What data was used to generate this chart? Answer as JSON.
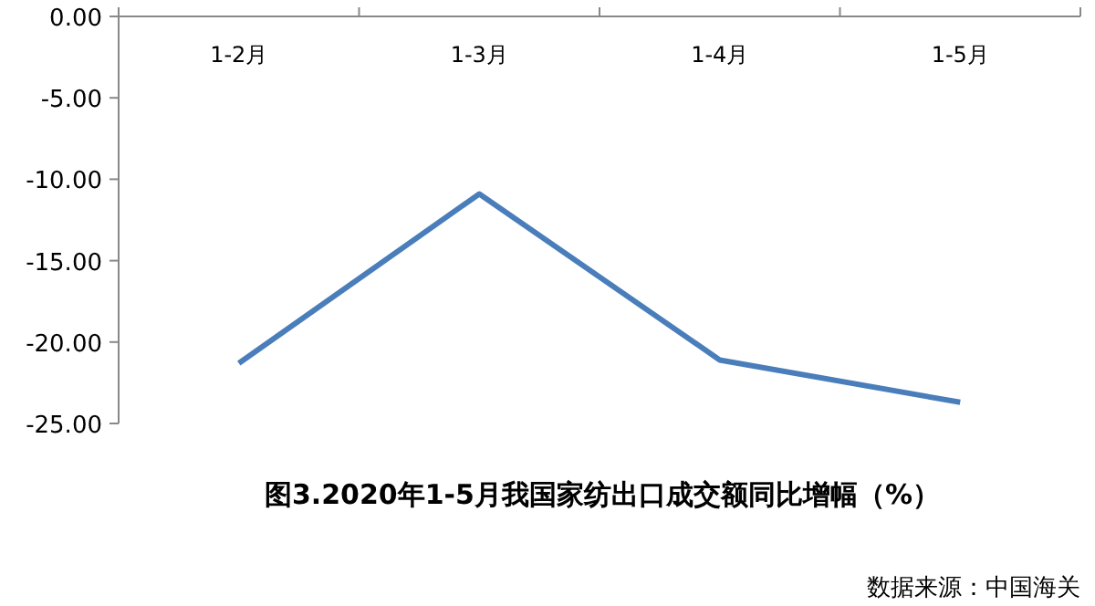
{
  "chart_data": {
    "type": "line",
    "title": "图3.2020年1-5月我国家纺出口成交额同比增幅（%）",
    "categories": [
      "1-2月",
      "1-3月",
      "1-4月",
      "1-5月"
    ],
    "series": [
      {
        "color": "#4a7ebb",
        "values": [
          -21.3,
          -10.9,
          -21.1,
          -23.7
        ]
      }
    ],
    "ylim": [
      -25,
      0
    ],
    "yticks": [
      {
        "value": 0,
        "label": "0.00"
      },
      {
        "value": -5,
        "label": "-5.00"
      },
      {
        "value": -10,
        "label": "-10.00"
      },
      {
        "value": -15,
        "label": "-15.00"
      },
      {
        "value": -20,
        "label": "-20.00"
      },
      {
        "value": -25,
        "label": "-25.00"
      }
    ],
    "annotations": [
      "数据来源：中国海关"
    ],
    "grid": false,
    "marker": "none",
    "line_style": "solid"
  }
}
